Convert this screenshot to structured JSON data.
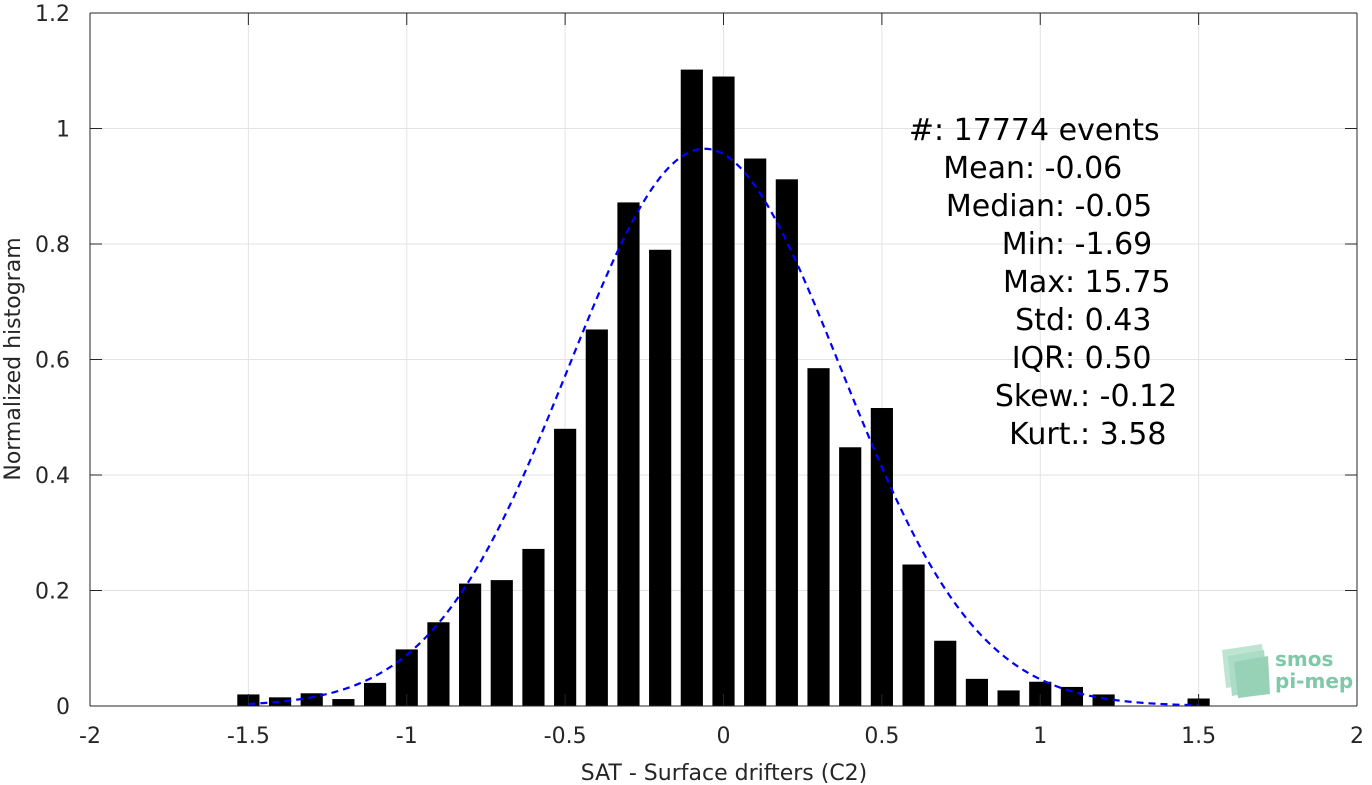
{
  "chart_data": {
    "type": "bar",
    "xlabel": "SAT - Surface drifters (C2)",
    "ylabel": "Normalized histogram",
    "xlim": [
      -2,
      2
    ],
    "ylim": [
      0,
      1.2
    ],
    "grid": true,
    "xticks": [
      -2,
      -1.5,
      -1,
      -0.5,
      0,
      0.5,
      1,
      1.5,
      2
    ],
    "xtick_labels": [
      "-2",
      "-1.5",
      "-1",
      "-0.5",
      "0",
      "0.5",
      "1",
      "1.5",
      "2"
    ],
    "yticks": [
      0,
      0.2,
      0.4,
      0.6,
      0.8,
      1,
      1.2
    ],
    "ytick_labels": [
      "0",
      "0.2",
      "0.4",
      "0.6",
      "0.8",
      "1",
      "1.2"
    ],
    "bar_color": "#000000",
    "bar_width": 0.07,
    "x": [
      -1.5,
      -1.4,
      -1.3,
      -1.2,
      -1.1,
      -1.0,
      -0.9,
      -0.8,
      -0.7,
      -0.6,
      -0.5,
      -0.4,
      -0.3,
      -0.2,
      -0.1,
      0.0,
      0.1,
      0.2,
      0.3,
      0.4,
      0.5,
      0.6,
      0.7,
      0.8,
      0.9,
      1.0,
      1.1,
      1.2,
      1.5
    ],
    "values": [
      0.02,
      0.015,
      0.022,
      0.012,
      0.04,
      0.098,
      0.145,
      0.212,
      0.218,
      0.272,
      0.48,
      0.652,
      0.872,
      0.79,
      1.102,
      1.09,
      0.948,
      0.912,
      0.585,
      0.448,
      0.516,
      0.245,
      0.113,
      0.047,
      0.027,
      0.042,
      0.033,
      0.02,
      0.013
    ],
    "fit": {
      "type": "normal",
      "color": "#0000ff",
      "style": "dashed",
      "mean": -0.06,
      "std": 0.43,
      "peak": 0.965,
      "range": [
        -1.5,
        1.5
      ]
    },
    "annotation": [
      {
        "label": "#  ",
        "value": ": 17774 events"
      },
      {
        "label": "Mean ",
        "value": ": -0.06"
      },
      {
        "label": "Median ",
        "value": ": -0.05"
      },
      {
        "label": "Min ",
        "value": ": -1.69"
      },
      {
        "label": "Max ",
        "value": ": 15.75"
      },
      {
        "label": "Std ",
        "value": ": 0.43"
      },
      {
        "label": "IQR ",
        "value": ": 0.50"
      },
      {
        "label": "Skew. ",
        "value": ": -0.12"
      },
      {
        "label": "Kurt. ",
        "value": ": 3.58"
      }
    ]
  },
  "logo": {
    "line1": "smos",
    "line2": "pi-mep",
    "color": "#7fc8a9"
  }
}
